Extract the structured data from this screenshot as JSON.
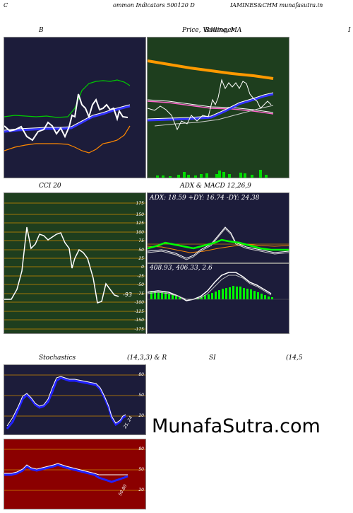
{
  "header": {
    "left_c": "C",
    "center": "ommon  Indicators 500120  D",
    "right": "IAMINES&CHM munafasutra.in"
  },
  "captions": {
    "bollinger": "B",
    "price_ma": "Price,  Volume,  MA",
    "volume_overlay": "Bollinger",
    "right_edge": "I",
    "cci": "CCI 20",
    "adx_macd": "ADX  & MACD 12,26,9",
    "stochastics": "Stochastics",
    "stoch_params": "(14,3,3) & R",
    "rsi": "SI",
    "rsi_params": "(14,5"
  },
  "adx": {
    "text": "ADX: 18.59  +DY: 16.74  -DY: 24.38"
  },
  "macd": {
    "text": "408.93,  406.33,  2.6"
  },
  "cci_panel": {
    "levels": [
      "175",
      "150",
      "125",
      "100",
      "75",
      "50",
      "25",
      "0",
      "-25",
      "-50",
      "-75",
      "-100",
      "-125",
      "-150",
      "-175"
    ],
    "current": "-93"
  },
  "stoch_panel": {
    "levels": [
      "80",
      "50",
      "20"
    ],
    "current": "25, 24"
  },
  "rsi_panel": {
    "levels": [
      "80",
      "50",
      "20"
    ],
    "current": "50.80"
  },
  "watermark": "MunafaSutra.com",
  "colors": {
    "navy": "#1c1c3a",
    "green_bg": "#1e3e1e",
    "dark_red": "#8b0000",
    "orange": "#ff9900",
    "bright_green": "#00ff00",
    "blue": "#3333ff"
  }
}
